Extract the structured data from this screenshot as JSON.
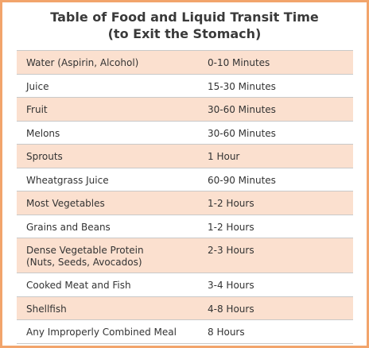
{
  "title": {
    "line1": "Table of Food and Liquid Transit Time",
    "line2": "(to Exit the Stomach)"
  },
  "rows": [
    {
      "food": "Water (Aspirin, Alcohol)",
      "time": "0-10 Minutes"
    },
    {
      "food": "Juice",
      "time": "15-30 Minutes"
    },
    {
      "food": "Fruit",
      "time": "30-60 Minutes"
    },
    {
      "food": "Melons",
      "time": "30-60 Minutes"
    },
    {
      "food": "Sprouts",
      "time": "1 Hour"
    },
    {
      "food": "Wheatgrass Juice",
      "time": "60-90 Minutes"
    },
    {
      "food": "Most Vegetables",
      "time": "1-2 Hours"
    },
    {
      "food": "Grains and Beans",
      "time": "1-2 Hours"
    },
    {
      "food": "Dense Vegetable Protein",
      "food_line2": "(Nuts, Seeds, Avocados)",
      "time": "2-3 Hours"
    },
    {
      "food": "Cooked Meat and Fish",
      "time": "3-4 Hours"
    },
    {
      "food": "Shellfish",
      "time": "4-8 Hours"
    },
    {
      "food": "Any Improperly Combined Meal",
      "time": "8 Hours"
    }
  ],
  "colors": {
    "border": "#f2a46b",
    "shaded_row": "#fbe0cf",
    "plain_row": "#ffffff",
    "rule": "#c9c9c9",
    "text": "#333333"
  }
}
